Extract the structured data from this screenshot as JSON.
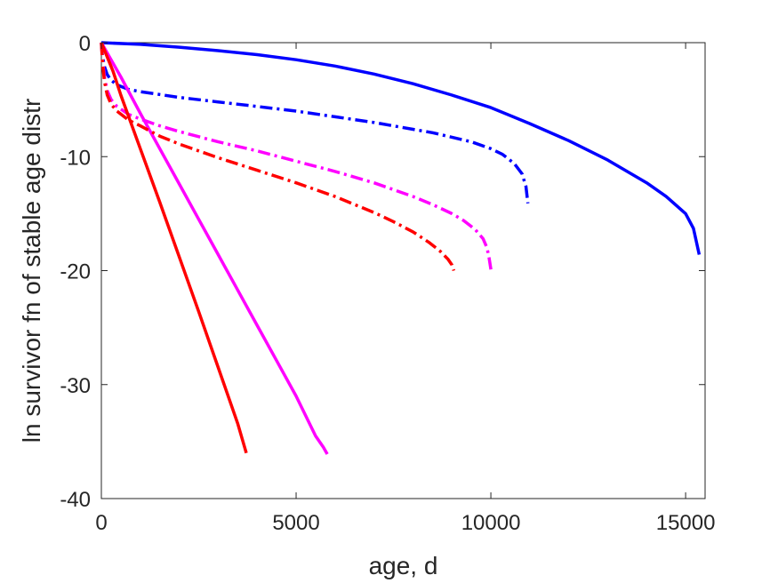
{
  "chart_data": {
    "type": "line",
    "title": "",
    "xlabel": "age, d",
    "ylabel": "ln survivor fn of stable age distr",
    "xlim": [
      0,
      15500
    ],
    "ylim": [
      -40,
      0
    ],
    "xticks": [
      0,
      5000,
      10000,
      15000
    ],
    "yticks": [
      0,
      -10,
      -20,
      -30,
      -40
    ],
    "xtick_labels": [
      "0",
      "5000",
      "10000",
      "15000"
    ],
    "ytick_labels": [
      "0",
      "-10",
      "-20",
      "-30",
      "-40"
    ],
    "grid": false,
    "legend": "none",
    "series": [
      {
        "color": "#0000ff",
        "style": "solid",
        "x": [
          0,
          1000,
          2000,
          3000,
          4000,
          5000,
          6000,
          7000,
          8000,
          9000,
          10000,
          11000,
          12000,
          13000,
          14000,
          14500,
          15000,
          15200,
          15350
        ],
        "y": [
          0,
          -0.15,
          -0.4,
          -0.7,
          -1.05,
          -1.5,
          -2.05,
          -2.75,
          -3.6,
          -4.6,
          -5.7,
          -7.1,
          -8.6,
          -10.3,
          -12.3,
          -13.5,
          -15.0,
          -16.3,
          -18.6
        ]
      },
      {
        "color": "#0000ff",
        "style": "dashdot",
        "x": [
          0,
          30,
          80,
          150,
          250,
          400,
          700,
          1000,
          2000,
          3000,
          4000,
          5000,
          6000,
          7000,
          8000,
          8500,
          9000,
          9500,
          10000,
          10300,
          10600,
          10800,
          10900,
          10950
        ],
        "y": [
          0,
          -1.2,
          -2.1,
          -2.8,
          -3.3,
          -3.7,
          -4.1,
          -4.3,
          -4.8,
          -5.2,
          -5.6,
          -6.0,
          -6.5,
          -7.0,
          -7.6,
          -7.9,
          -8.3,
          -8.7,
          -9.3,
          -9.8,
          -10.6,
          -11.5,
          -12.6,
          -14.1
        ]
      },
      {
        "color": "#ff00ff",
        "style": "solid",
        "x": [
          0,
          500,
          1000,
          1500,
          2000,
          2500,
          3000,
          3500,
          4000,
          4500,
          5000,
          5500,
          5700,
          5800
        ],
        "y": [
          0,
          -3.0,
          -6.2,
          -9.3,
          -12.4,
          -15.5,
          -18.6,
          -21.7,
          -24.8,
          -27.9,
          -31.0,
          -34.5,
          -35.5,
          -36.1
        ]
      },
      {
        "color": "#ff00ff",
        "style": "dashdot",
        "x": [
          0,
          30,
          80,
          150,
          250,
          400,
          700,
          1000,
          1500,
          2000,
          3000,
          4000,
          5000,
          6000,
          7000,
          8000,
          8500,
          9000,
          9300,
          9600,
          9800,
          9900,
          9950,
          10000
        ],
        "y": [
          0,
          -1.5,
          -3.0,
          -4.2,
          -5.0,
          -5.6,
          -6.3,
          -6.7,
          -7.3,
          -7.8,
          -8.7,
          -9.5,
          -10.4,
          -11.3,
          -12.3,
          -13.5,
          -14.2,
          -15.0,
          -15.6,
          -16.4,
          -17.2,
          -18.0,
          -18.8,
          -19.9
        ]
      },
      {
        "color": "#ff0000",
        "style": "solid",
        "x": [
          0,
          300,
          500,
          1000,
          1500,
          2000,
          2500,
          3000,
          3500,
          3720
        ],
        "y": [
          0,
          -2.5,
          -4.6,
          -9.3,
          -14.0,
          -18.8,
          -23.6,
          -28.5,
          -33.4,
          -36.0
        ]
      },
      {
        "color": "#ff0000",
        "style": "dashdot",
        "x": [
          0,
          30,
          80,
          150,
          250,
          400,
          700,
          1000,
          1500,
          2000,
          3000,
          4000,
          5000,
          6000,
          7000,
          7500,
          8000,
          8400,
          8700,
          8900,
          9000,
          9050
        ],
        "y": [
          0,
          -1.8,
          -3.4,
          -4.6,
          -5.4,
          -6.0,
          -6.8,
          -7.3,
          -8.2,
          -8.9,
          -10.1,
          -11.2,
          -12.3,
          -13.5,
          -14.9,
          -15.7,
          -16.6,
          -17.5,
          -18.3,
          -19.0,
          -19.5,
          -20.0
        ]
      }
    ]
  }
}
